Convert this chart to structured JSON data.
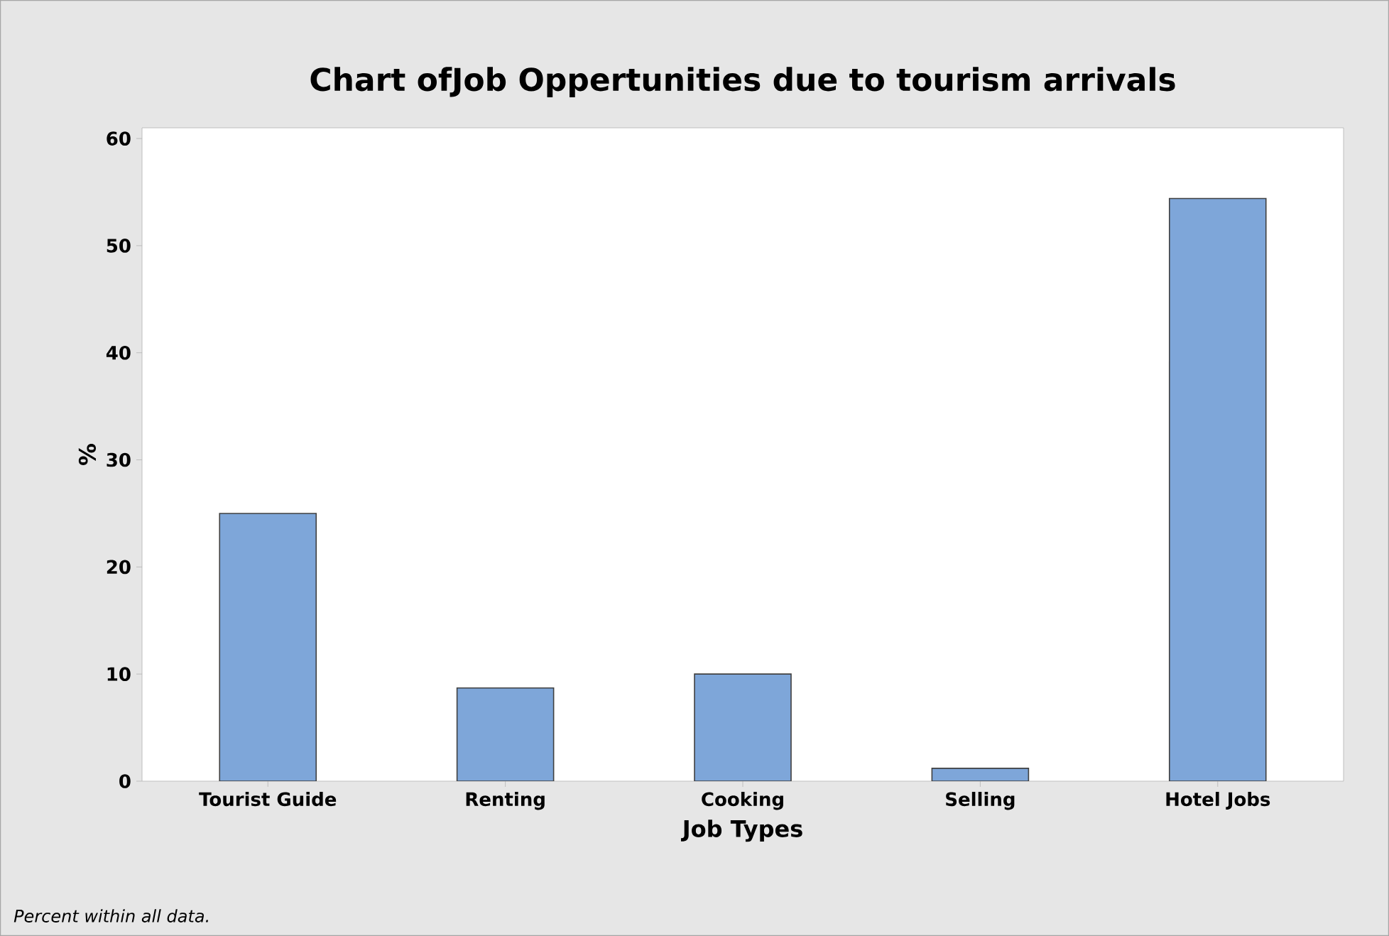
{
  "chart_data": {
    "type": "bar",
    "title": "Chart ofJob Oppertunities due to tourism arrivals",
    "xlabel": "Job Types",
    "ylabel": "%",
    "categories": [
      "Tourist Guide",
      "Renting",
      "Cooking",
      "Selling",
      "Hotel Jobs"
    ],
    "values": [
      25,
      8.7,
      10,
      1.2,
      54.4
    ],
    "color": "#7ea6d9",
    "ylim": [
      0,
      61
    ],
    "yticks": [
      0,
      10,
      20,
      30,
      40,
      50,
      60
    ],
    "annotations": [
      "Percent within all data."
    ]
  }
}
